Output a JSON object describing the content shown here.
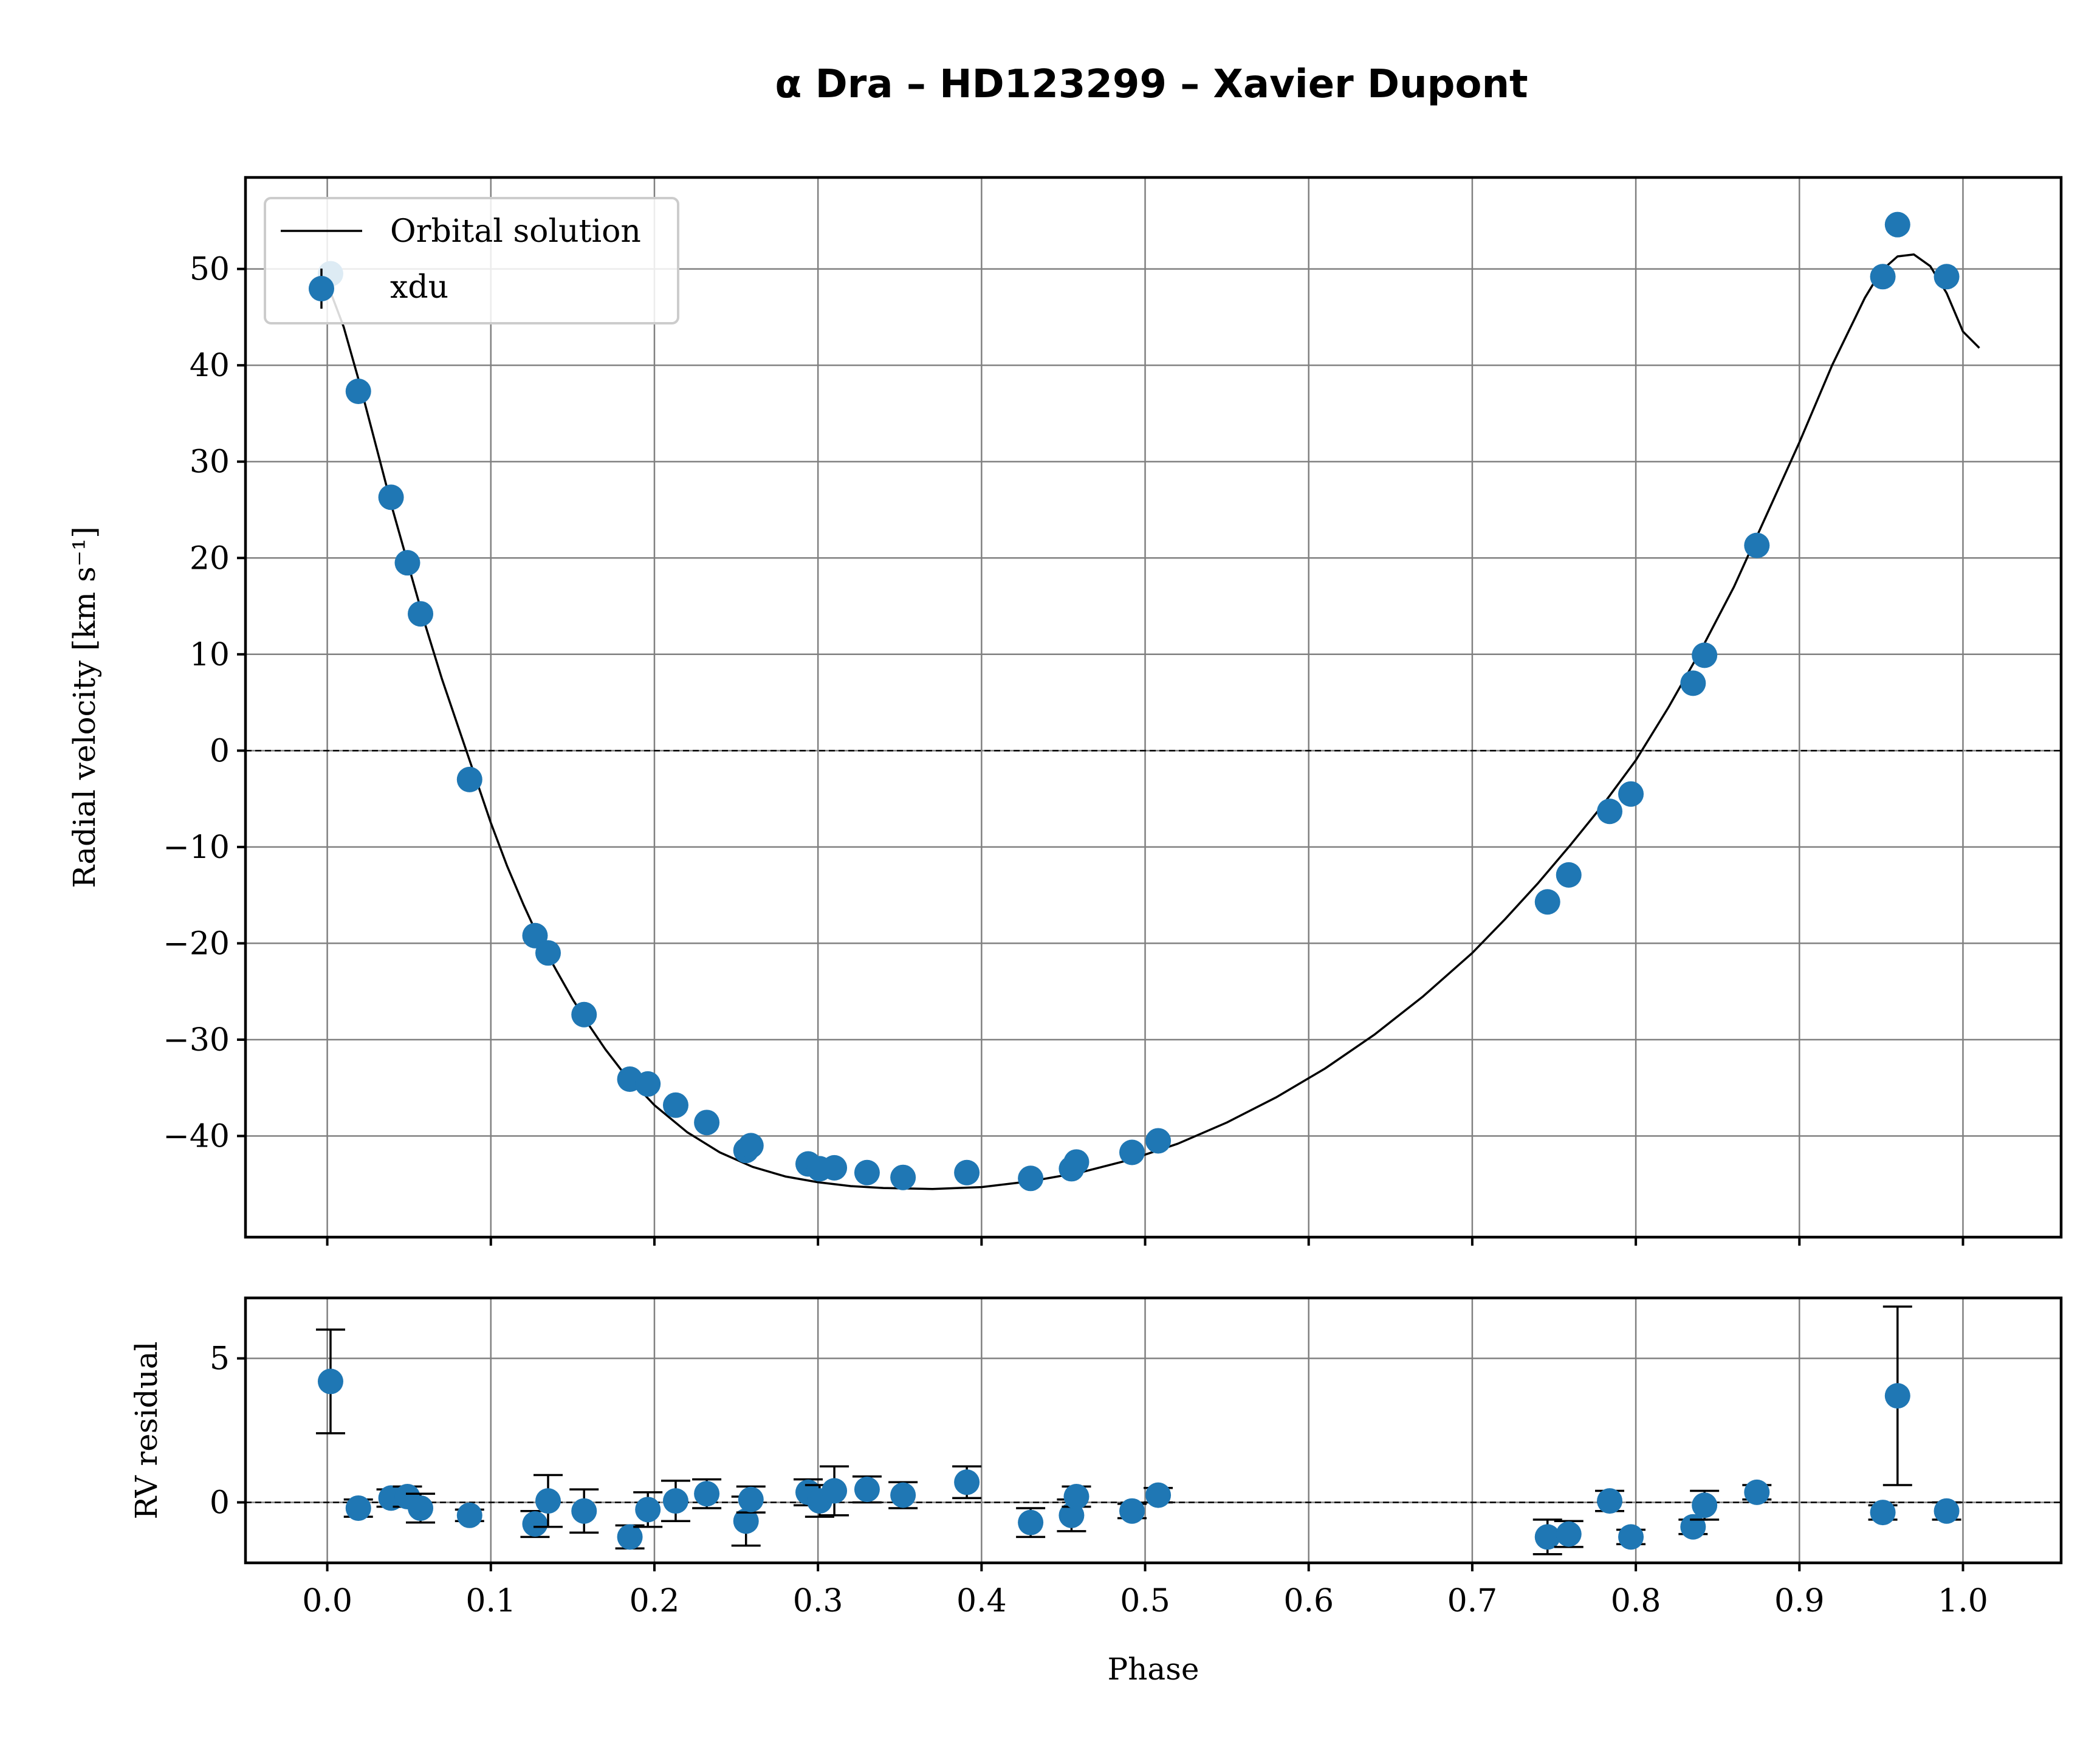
{
  "title": "α Dra – HD123299 – Xavier Dupont",
  "colors": {
    "points": "#1f77b4",
    "line": "#000000",
    "grid": "#808080"
  },
  "chart_data": [
    {
      "type": "scatter",
      "panel": "top",
      "title": "α Dra – HD123299 – Xavier Dupont",
      "xlabel": "",
      "ylabel": "Radial velocity [km s⁻¹]",
      "xlim": [
        -0.05,
        1.06
      ],
      "ylim": [
        -50.5,
        59.5
      ],
      "xticks": [
        0.0,
        0.1,
        0.2,
        0.3,
        0.4,
        0.5,
        0.6,
        0.7,
        0.8,
        0.9,
        1.0
      ],
      "yticks": [
        -40,
        -30,
        -20,
        -10,
        0,
        10,
        20,
        30,
        40,
        50
      ],
      "ytick_labels": [
        "−40",
        "−30",
        "−20",
        "−10",
        "0",
        "10",
        "20",
        "30",
        "40",
        "50"
      ],
      "grid": true,
      "legend": {
        "position": "upper-left",
        "entries": [
          "Orbital solution",
          "xdu"
        ]
      },
      "zero_line": 0,
      "series": [
        {
          "name": "Orbital solution",
          "kind": "line",
          "x": [
            0.0,
            0.01,
            0.02,
            0.03,
            0.04,
            0.05,
            0.06,
            0.07,
            0.08,
            0.09,
            0.1,
            0.11,
            0.12,
            0.13,
            0.14,
            0.15,
            0.16,
            0.17,
            0.18,
            0.2,
            0.22,
            0.24,
            0.26,
            0.28,
            0.3,
            0.32,
            0.34,
            0.37,
            0.4,
            0.43,
            0.46,
            0.49,
            0.52,
            0.55,
            0.58,
            0.61,
            0.64,
            0.67,
            0.7,
            0.72,
            0.74,
            0.76,
            0.78,
            0.8,
            0.82,
            0.84,
            0.86,
            0.88,
            0.9,
            0.92,
            0.94,
            0.95,
            0.96,
            0.97,
            0.98,
            0.99,
            1.0,
            1.01
          ],
          "y": [
            48.5,
            44.0,
            38.0,
            31.5,
            25.0,
            19.0,
            13.0,
            7.5,
            2.5,
            -2.5,
            -7.5,
            -12.0,
            -16.0,
            -19.7,
            -22.8,
            -25.8,
            -28.5,
            -31.0,
            -33.2,
            -36.8,
            -39.6,
            -41.7,
            -43.2,
            -44.2,
            -44.8,
            -45.2,
            -45.4,
            -45.5,
            -45.3,
            -44.7,
            -43.8,
            -42.5,
            -40.8,
            -38.6,
            -36.0,
            -33.0,
            -29.5,
            -25.5,
            -21.0,
            -17.5,
            -13.8,
            -9.8,
            -5.6,
            -1.0,
            4.5,
            10.5,
            17.0,
            24.5,
            32.0,
            40.0,
            47.0,
            49.8,
            51.3,
            51.5,
            50.3,
            47.5,
            43.5,
            41.8
          ]
        },
        {
          "name": "xdu",
          "kind": "points",
          "x": [
            0.002,
            0.019,
            0.039,
            0.049,
            0.057,
            0.087,
            0.127,
            0.135,
            0.157,
            0.185,
            0.196,
            0.213,
            0.232,
            0.256,
            0.259,
            0.294,
            0.301,
            0.31,
            0.33,
            0.352,
            0.391,
            0.43,
            0.455,
            0.458,
            0.492,
            0.508,
            0.746,
            0.759,
            0.784,
            0.797,
            0.835,
            0.842,
            0.874,
            0.951,
            0.96,
            0.99
          ],
          "y": [
            49.5,
            37.3,
            26.3,
            19.5,
            14.2,
            -3.0,
            -19.2,
            -21.0,
            -27.4,
            -34.1,
            -34.6,
            -36.8,
            -38.6,
            -41.5,
            -41.0,
            -42.9,
            -43.4,
            -43.3,
            -43.8,
            -44.3,
            -43.8,
            -44.4,
            -43.4,
            -42.7,
            -41.7,
            -40.5,
            -15.7,
            -12.9,
            -6.3,
            -4.5,
            7.0,
            9.9,
            21.3,
            49.2,
            54.6,
            49.2
          ]
        }
      ]
    },
    {
      "type": "scatter",
      "panel": "bottom",
      "xlabel": "Phase",
      "ylabel": "RV residual",
      "xlim": [
        -0.05,
        1.06
      ],
      "ylim": [
        -2.1,
        7.1
      ],
      "xticks": [
        0.0,
        0.1,
        0.2,
        0.3,
        0.4,
        0.5,
        0.6,
        0.7,
        0.8,
        0.9,
        1.0
      ],
      "xtick_labels": [
        "0.0",
        "0.1",
        "0.2",
        "0.3",
        "0.4",
        "0.5",
        "0.6",
        "0.7",
        "0.8",
        "0.9",
        "1.0"
      ],
      "yticks": [
        0,
        5
      ],
      "ytick_labels": [
        "0",
        "5"
      ],
      "grid": true,
      "zero_line": 0,
      "series": [
        {
          "name": "xdu",
          "kind": "errorbar",
          "x": [
            0.002,
            0.019,
            0.039,
            0.049,
            0.057,
            0.087,
            0.127,
            0.135,
            0.157,
            0.185,
            0.196,
            0.213,
            0.232,
            0.256,
            0.259,
            0.294,
            0.301,
            0.31,
            0.33,
            0.352,
            0.391,
            0.43,
            0.455,
            0.458,
            0.492,
            0.508,
            0.746,
            0.759,
            0.784,
            0.797,
            0.835,
            0.842,
            0.874,
            0.951,
            0.96,
            0.99
          ],
          "y": [
            4.2,
            -0.2,
            0.15,
            0.2,
            -0.2,
            -0.45,
            -0.75,
            0.05,
            -0.3,
            -1.2,
            -0.25,
            0.05,
            0.3,
            -0.65,
            0.1,
            0.35,
            0.05,
            0.4,
            0.45,
            0.25,
            0.7,
            -0.7,
            -0.45,
            0.2,
            -0.3,
            0.25,
            -1.2,
            -1.1,
            0.05,
            -1.2,
            -0.85,
            -0.1,
            0.35,
            -0.35,
            3.7,
            -0.3
          ],
          "err": [
            1.8,
            0.3,
            0.3,
            0.35,
            0.5,
            0.2,
            0.45,
            0.9,
            0.75,
            0.4,
            0.6,
            0.7,
            0.5,
            0.85,
            0.45,
            0.45,
            0.55,
            0.85,
            0.45,
            0.45,
            0.55,
            0.5,
            0.55,
            0.35,
            0.25,
            0.25,
            0.6,
            0.45,
            0.35,
            0.25,
            0.25,
            0.5,
            0.25,
            0.25,
            3.1,
            0.3
          ]
        }
      ]
    }
  ]
}
